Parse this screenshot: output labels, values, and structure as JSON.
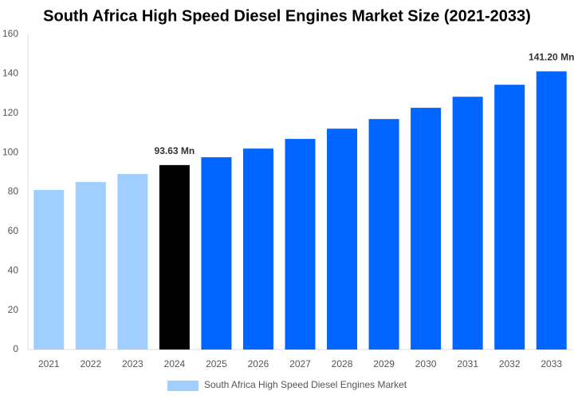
{
  "chart_data": {
    "type": "bar",
    "title": "South Africa High Speed Diesel Engines Market Size (2021-2033)",
    "categories": [
      "2021",
      "2022",
      "2023",
      "2024",
      "2025",
      "2026",
      "2027",
      "2028",
      "2029",
      "2030",
      "2031",
      "2032",
      "2033"
    ],
    "series": [
      {
        "name": "South Africa High Speed Diesel Engines Market",
        "color": "#a0cfff",
        "colors": [
          "#a0cfff",
          "#a0cfff",
          "#a0cfff",
          "#000000",
          "#0066ff",
          "#0066ff",
          "#0066ff",
          "#0066ff",
          "#0066ff",
          "#0066ff",
          "#0066ff",
          "#0066ff",
          "#0066ff"
        ],
        "values": [
          81.0,
          85.0,
          89.1,
          93.63,
          97.6,
          102.0,
          106.9,
          112.1,
          117.0,
          122.7,
          128.3,
          134.4,
          141.2
        ],
        "value_labels": [
          null,
          null,
          null,
          "93.63 Mn",
          null,
          null,
          null,
          null,
          null,
          null,
          null,
          null,
          "141.20 Mn"
        ]
      }
    ],
    "ylim": [
      0,
      160
    ],
    "yticks": [
      0,
      20,
      40,
      60,
      80,
      100,
      120,
      140,
      160
    ],
    "grid": false
  }
}
